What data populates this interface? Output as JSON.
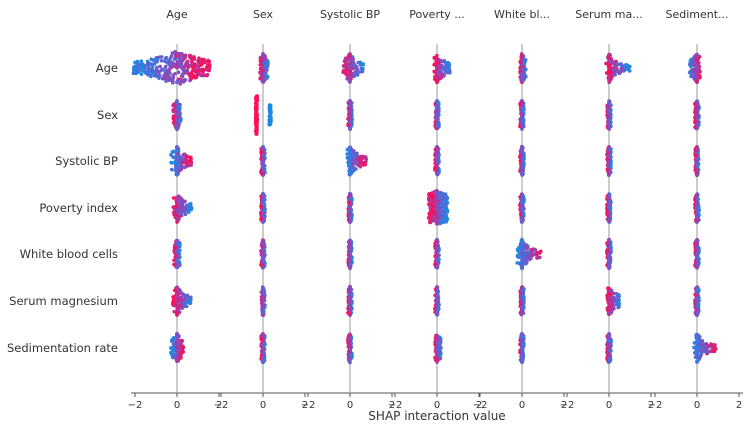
{
  "chart_data": {
    "type": "scatter",
    "subtype": "shap-interaction-beeswarm-matrix",
    "title": "",
    "xlabel": "SHAP interaction value",
    "column_titles": [
      "Age",
      "Sex",
      "Systolic BP",
      "Poverty ...",
      "White bl...",
      "Serum ma...",
      "Sediment..."
    ],
    "row_labels": [
      "Age",
      "Sex",
      "Systolic BP",
      "Poverty index",
      "White blood cells",
      "Serum magnesium",
      "Sedimentation rate"
    ],
    "x_ticks": [
      [
        "−2",
        "0",
        "2"
      ],
      [
        "−2",
        "0",
        "2"
      ],
      [
        "−2",
        "0",
        "2"
      ],
      [
        "−2",
        "0",
        "2"
      ],
      [
        "−2",
        "0",
        "2"
      ],
      [
        "−2",
        "0",
        "2"
      ],
      [
        "−2",
        "0",
        "2"
      ]
    ],
    "xlim": [
      -2.5,
      2.5
    ],
    "grid": "vertical line at x = 0 in each panel",
    "colors": {
      "low_feature_value": "#1E88E5",
      "high_feature_value": "#FF0D57",
      "mid_feature_value": "#7C52C8",
      "zero_line": "#999999",
      "axis": "#555555",
      "text": "#333333"
    },
    "cells": [
      [
        {
          "min": -2.1,
          "max": 1.6,
          "low_side": "left",
          "dense": true
        },
        {
          "min": -0.15,
          "max": 0.25,
          "low_side": "right"
        },
        {
          "min": -0.35,
          "max": 0.65,
          "low_side": "right"
        },
        {
          "min": -0.15,
          "max": 0.65,
          "low_side": "right"
        },
        {
          "min": -0.1,
          "max": 0.2,
          "low_side": "right"
        },
        {
          "min": -0.15,
          "max": 1.0,
          "low_side": "right"
        },
        {
          "min": -0.35,
          "max": 0.15,
          "low_side": "left"
        }
      ],
      [
        {
          "min": -0.2,
          "max": 0.2,
          "low_side": "right"
        },
        {
          "min": -0.35,
          "max": 0.35,
          "low_side": "right",
          "split": true
        },
        {
          "min": -0.1,
          "max": 0.1,
          "low_side": "right"
        },
        {
          "min": -0.1,
          "max": 0.1,
          "low_side": "right"
        },
        {
          "min": -0.1,
          "max": 0.1,
          "low_side": "right"
        },
        {
          "min": -0.1,
          "max": 0.1,
          "low_side": "right"
        },
        {
          "min": -0.1,
          "max": 0.1,
          "low_side": "right"
        }
      ],
      [
        {
          "min": -0.3,
          "max": 0.7,
          "low_side": "left"
        },
        {
          "min": -0.1,
          "max": 0.1,
          "low_side": "right"
        },
        {
          "min": -0.2,
          "max": 0.8,
          "low_side": "left"
        },
        {
          "min": -0.1,
          "max": 0.1,
          "low_side": "right"
        },
        {
          "min": -0.1,
          "max": 0.1,
          "low_side": "right"
        },
        {
          "min": -0.1,
          "max": 0.1,
          "low_side": "right"
        },
        {
          "min": -0.1,
          "max": 0.1,
          "low_side": "right"
        }
      ],
      [
        {
          "min": -0.2,
          "max": 0.7,
          "low_side": "right"
        },
        {
          "min": -0.1,
          "max": 0.1,
          "low_side": "right"
        },
        {
          "min": -0.1,
          "max": 0.1,
          "low_side": "right"
        },
        {
          "min": -0.4,
          "max": 0.5,
          "low_side": "right",
          "dense": true
        },
        {
          "min": -0.1,
          "max": 0.1,
          "low_side": "right"
        },
        {
          "min": -0.1,
          "max": 0.1,
          "low_side": "right"
        },
        {
          "min": -0.1,
          "max": 0.1,
          "low_side": "right"
        }
      ],
      [
        {
          "min": -0.15,
          "max": 0.15,
          "low_side": "right"
        },
        {
          "min": -0.1,
          "max": 0.1,
          "low_side": "right"
        },
        {
          "min": -0.1,
          "max": 0.1,
          "low_side": "right"
        },
        {
          "min": -0.1,
          "max": 0.1,
          "low_side": "right"
        },
        {
          "min": -0.3,
          "max": 0.9,
          "low_side": "left"
        },
        {
          "min": -0.1,
          "max": 0.1,
          "low_side": "right"
        },
        {
          "min": -0.1,
          "max": 0.1,
          "low_side": "right"
        }
      ],
      [
        {
          "min": -0.2,
          "max": 0.7,
          "low_side": "right"
        },
        {
          "min": -0.1,
          "max": 0.1,
          "low_side": "right"
        },
        {
          "min": -0.1,
          "max": 0.1,
          "low_side": "right"
        },
        {
          "min": -0.1,
          "max": 0.1,
          "low_side": "right"
        },
        {
          "min": -0.1,
          "max": 0.1,
          "low_side": "right"
        },
        {
          "min": -0.1,
          "max": 0.5,
          "low_side": "right"
        },
        {
          "min": -0.1,
          "max": 0.1,
          "low_side": "right"
        }
      ],
      [
        {
          "min": -0.3,
          "max": 0.3,
          "low_side": "left"
        },
        {
          "min": -0.1,
          "max": 0.1,
          "low_side": "right"
        },
        {
          "min": -0.1,
          "max": 0.1,
          "low_side": "right"
        },
        {
          "min": -0.1,
          "max": 0.2,
          "low_side": "right"
        },
        {
          "min": -0.1,
          "max": 0.1,
          "low_side": "right"
        },
        {
          "min": -0.1,
          "max": 0.1,
          "low_side": "right"
        },
        {
          "min": -0.2,
          "max": 0.9,
          "low_side": "left"
        }
      ]
    ]
  }
}
